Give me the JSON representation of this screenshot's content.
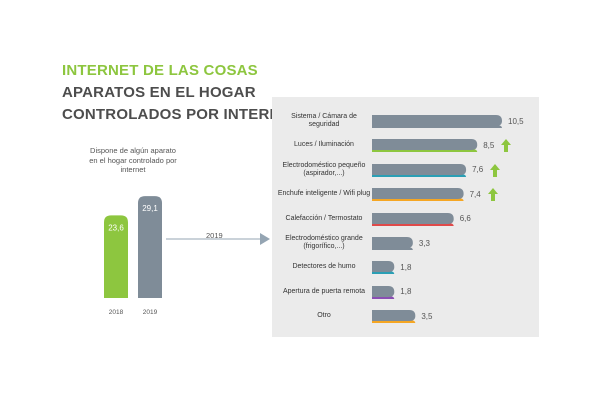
{
  "title": {
    "line1": "INTERNET DE LAS COSAS",
    "line2": "APARATOS EN EL HOGAR",
    "line3": "CONTROLADOS POR INTERNET (%)"
  },
  "colors": {
    "green": "#8dc63f",
    "gray_bar": "#7f8c98",
    "panel_bg": "#ebebeb",
    "arrow": "#95a5b3"
  },
  "icons": {
    "trend": "up-arrow-icon",
    "connector": "right-arrow-icon"
  },
  "left_chart": {
    "caption": "Dispone de algún aparato en el hogar controlado por internet",
    "bars": [
      {
        "year": "2018",
        "value": 23.6,
        "label": "23,6",
        "color": "#8dc63f"
      },
      {
        "year": "2019",
        "value": 29.1,
        "label": "29,1",
        "color": "#7f8c98"
      }
    ]
  },
  "arrow_label": "2019",
  "chart_data": [
    {
      "type": "bar",
      "categories": [
        "2018",
        "2019"
      ],
      "values": [
        23.6,
        29.1
      ],
      "title": "Dispone de algún aparato en el hogar controlado por internet",
      "xlabel": "",
      "ylabel": ""
    },
    {
      "type": "bar",
      "orientation": "horizontal",
      "title": "2019",
      "xlim": [
        0,
        11
      ],
      "categories": [
        "Sistema / Cámara de seguridad",
        "Luces / Iluminación",
        "Electrodoméstico pequeño (aspirador,...)",
        "Enchufe inteligente / Wifi plug",
        "Calefacción / Termostato",
        "Electrodoméstico grande (frigorífico,...)",
        "Detectores de humo",
        "Apertura de puerta remota",
        "Otro"
      ],
      "values": [
        10.5,
        8.5,
        7.6,
        7.4,
        6.6,
        3.3,
        1.8,
        1.8,
        3.5
      ],
      "value_labels": [
        "10,5",
        "8,5",
        "7,6",
        "7,4",
        "6,6",
        "3,3",
        "1,8",
        "1,8",
        "3,5"
      ],
      "trend_up": [
        false,
        true,
        true,
        true,
        false,
        false,
        false,
        false,
        false
      ],
      "underline_colors": [
        "#7f8c98",
        "#8dc63f",
        "#2a9fb5",
        "#f5a623",
        "#e04a4a",
        "#7f8c98",
        "#2a9fb5",
        "#8a4fb3",
        "#f5a623"
      ]
    }
  ]
}
